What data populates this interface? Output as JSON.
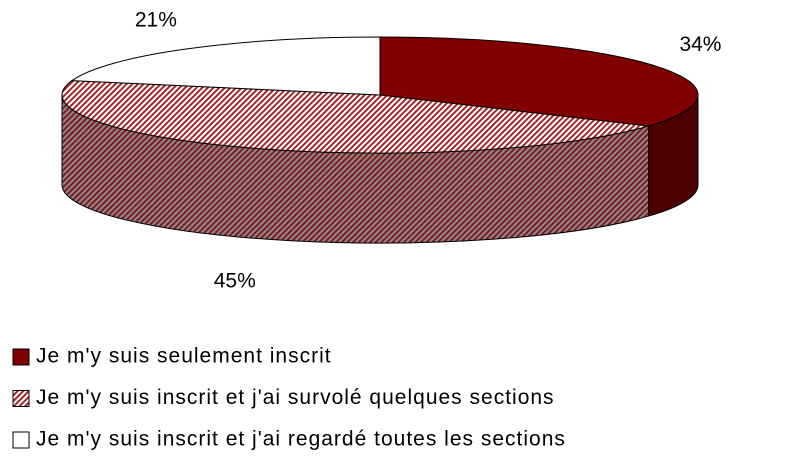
{
  "chart_data": {
    "type": "pie",
    "categories": [
      "Je m'y suis seulement inscrit",
      "Je m'y suis inscrit et j'ai survolé quelques sections",
      "Je m'y suis inscrit et j'ai regardé toutes les sections"
    ],
    "values": [
      34,
      45,
      21
    ],
    "value_labels": [
      "34%",
      "45%",
      "21%"
    ],
    "colors": [
      "#800000",
      "#a0282a",
      "#ffffff"
    ],
    "patterns": [
      "solid",
      "hatch",
      "solid"
    ],
    "three_d": true
  }
}
